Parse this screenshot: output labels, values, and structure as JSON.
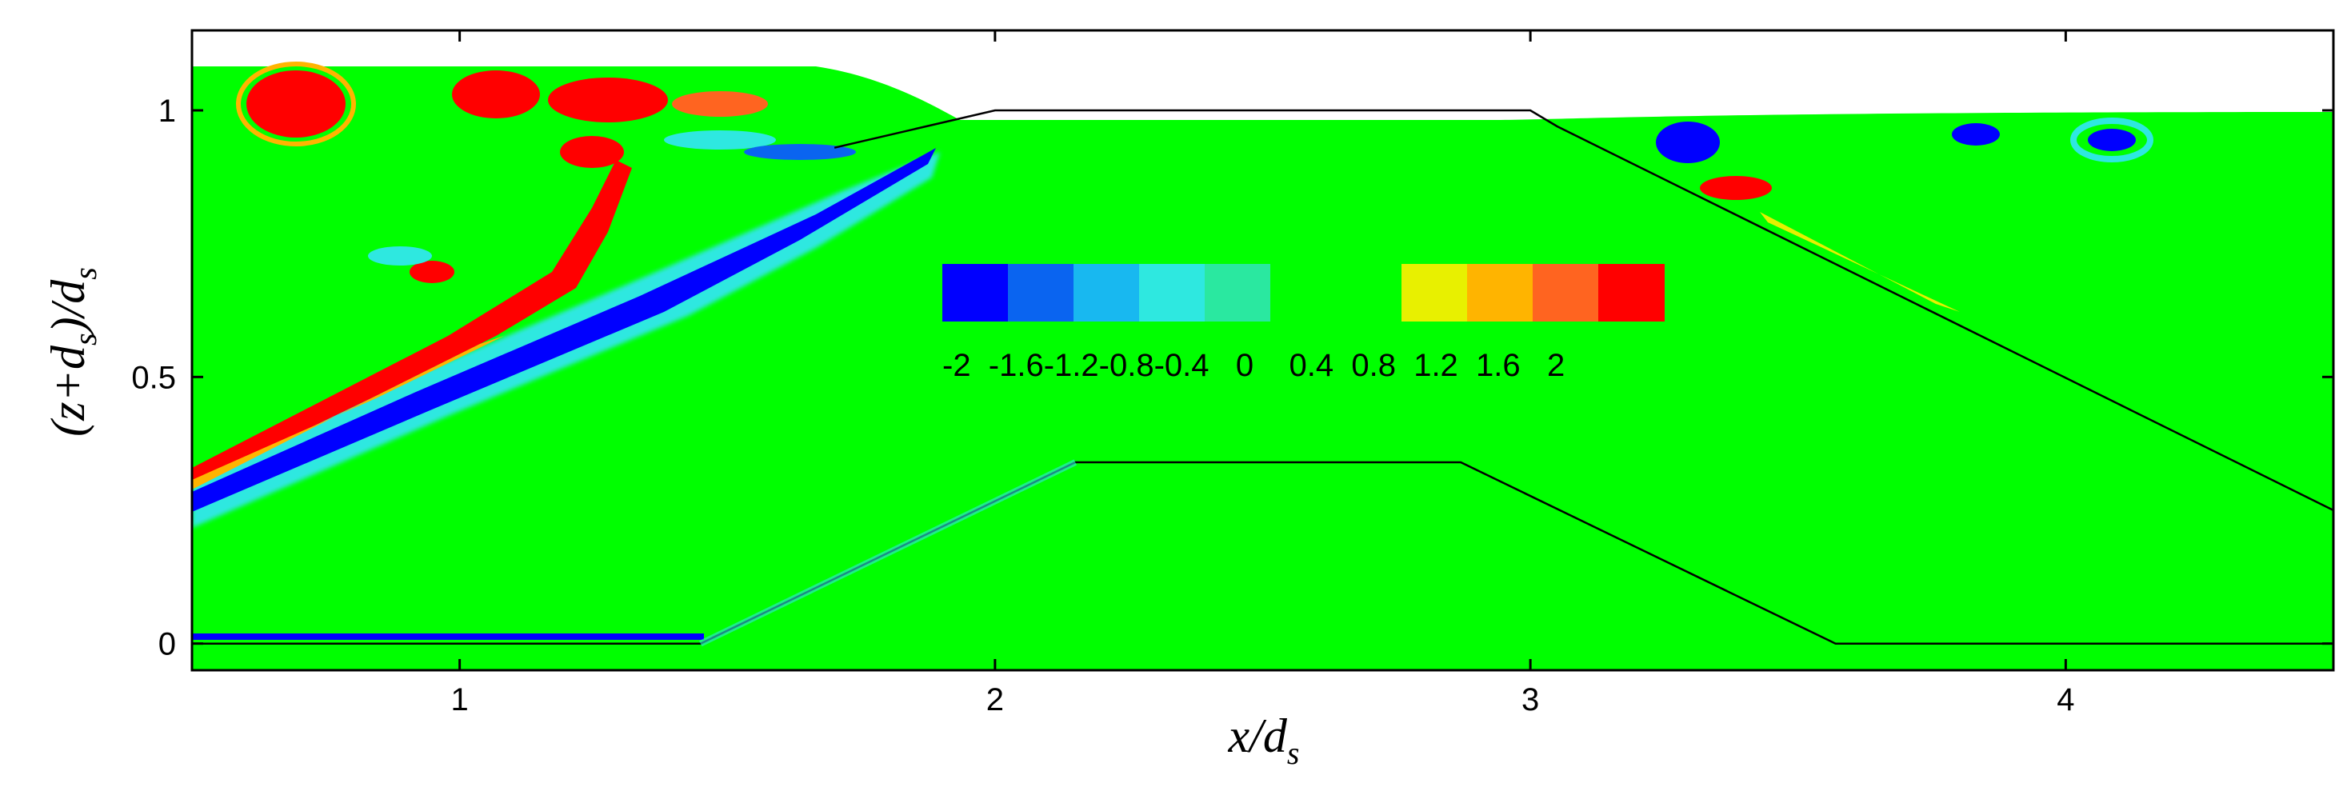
{
  "chart_data": {
    "type": "heatmap",
    "xlabel": {
      "main": "x/d",
      "sub": "s"
    },
    "ylabel": {
      "pre": "(z+d",
      "sub1": "s",
      "mid": ")/d",
      "sub2": "s"
    },
    "xlim": [
      0.5,
      4.5
    ],
    "ylim": [
      -0.05,
      1.15
    ],
    "x_ticks": [
      {
        "value": 1,
        "label": "1"
      },
      {
        "value": 2,
        "label": "2"
      },
      {
        "value": 3,
        "label": "3"
      },
      {
        "value": 4,
        "label": "4"
      }
    ],
    "y_ticks": [
      {
        "value": 0,
        "label": "0"
      },
      {
        "value": 0.5,
        "label": "0.5"
      },
      {
        "value": 1,
        "label": "1"
      }
    ],
    "colorbar": {
      "levels": [
        -2,
        -1.6,
        -1.2,
        -0.8,
        -0.4,
        0,
        0.4,
        0.8,
        1.2,
        1.6,
        2
      ],
      "colors": [
        "#0000ff",
        "#0a64f0",
        "#18b8f0",
        "#2ee8e0",
        "#2ae8a0",
        "#00ff00",
        "#00ff00",
        "#e8f000",
        "#ffb400",
        "#ff6420",
        "#ff0000"
      ],
      "label_text": "-2  -1.6-1.2-0.8-0.4   0    0.4  0.8  1.2  1.6   2"
    },
    "background_value": 0,
    "free_surface_left": 1.08,
    "free_surface_right": 0.98,
    "outer_structure": [
      [
        1.7,
        0.93
      ],
      [
        2.0,
        1.0
      ],
      [
        3.0,
        1.0
      ],
      [
        3.05,
        0.97
      ],
      [
        4.5,
        0.25
      ]
    ],
    "inner_structure": [
      [
        0.5,
        0.0
      ],
      [
        1.45,
        0.0
      ],
      [
        2.15,
        0.34
      ],
      [
        2.87,
        0.34
      ],
      [
        3.57,
        0.0
      ],
      [
        4.5,
        0.0
      ]
    ]
  }
}
